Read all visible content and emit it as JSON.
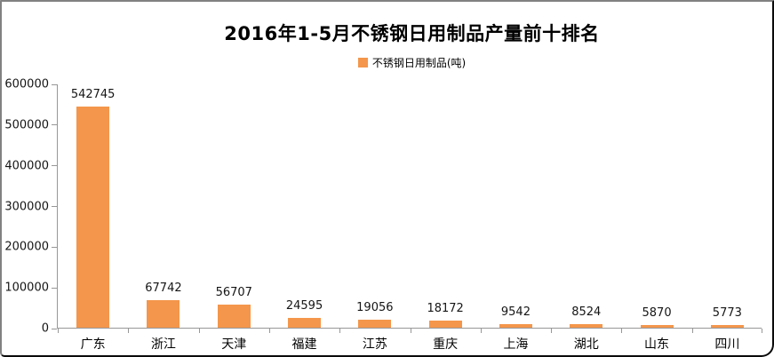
{
  "chart_data": {
    "type": "bar",
    "title": "2016年1-5月不锈钢日用制品产量前十排名",
    "legend": [
      "不锈钢日用制品(吨)"
    ],
    "legend_position": "top",
    "categories": [
      "广东",
      "浙江",
      "天津",
      "福建",
      "江苏",
      "重庆",
      "上海",
      "湖北",
      "山东",
      "四川"
    ],
    "values": [
      542745,
      67742,
      56707,
      24595,
      19056,
      18172,
      9542,
      8524,
      5870,
      5773
    ],
    "data_labels": [
      542745,
      67742,
      56707,
      24595,
      19056,
      18172,
      9542,
      8524,
      5870,
      5773
    ],
    "xlabel": "",
    "ylabel": "",
    "ylim": [
      0,
      600000
    ],
    "y_ticks": [
      0,
      100000,
      200000,
      300000,
      400000,
      500000,
      600000
    ],
    "grid": false,
    "colors": {
      "bar": "#F4964B",
      "axis": "#979797",
      "title_text": "#000000",
      "label_text": "#151515",
      "frame_top_left": "#818181",
      "frame_bottom_right": "#0a0a0a",
      "background": "#ffffff"
    }
  }
}
